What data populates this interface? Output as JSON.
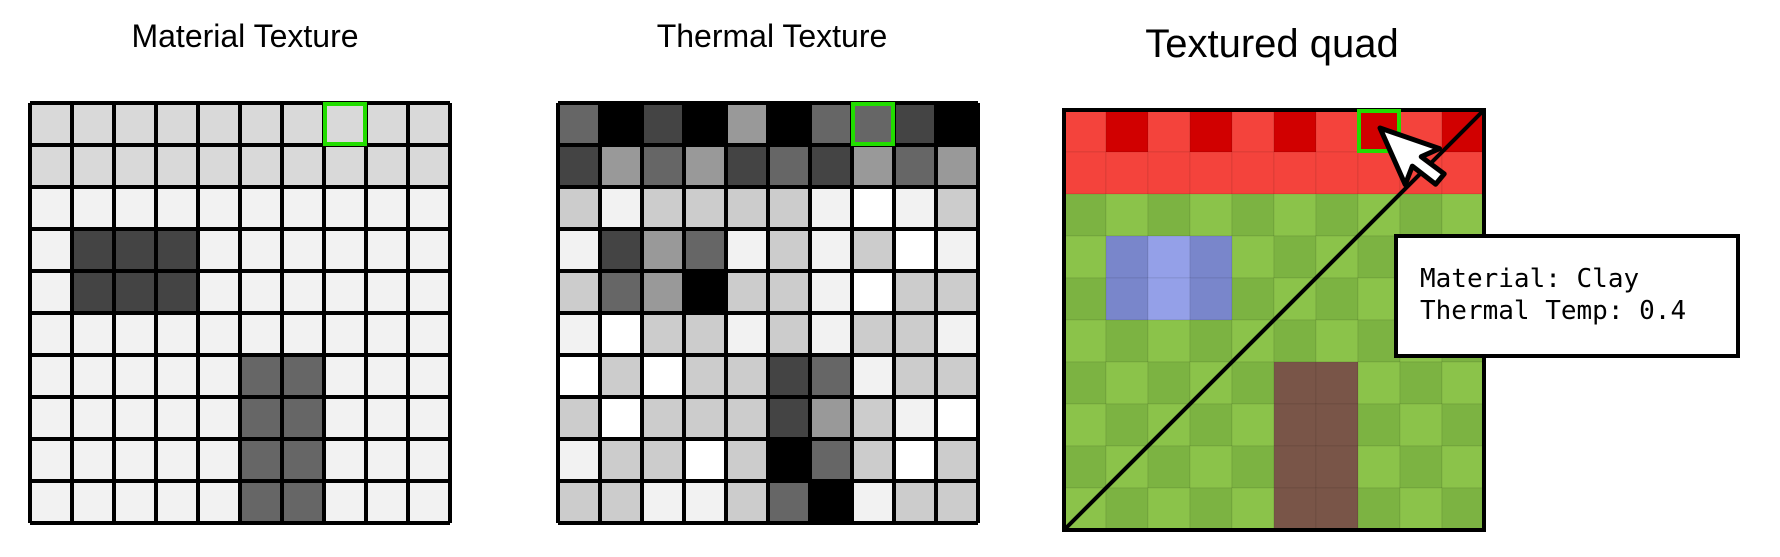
{
  "panels": {
    "material": {
      "title": "Material Texture"
    },
    "thermal": {
      "title": "Thermal Texture"
    },
    "quad": {
      "title": "Textured quad"
    }
  },
  "grid_size": 10,
  "material_grid": [
    [
      "#d9d9d9",
      "#d9d9d9",
      "#d9d9d9",
      "#d9d9d9",
      "#d9d9d9",
      "#d9d9d9",
      "#d9d9d9",
      "#d9d9d9",
      "#d9d9d9",
      "#d9d9d9"
    ],
    [
      "#d9d9d9",
      "#d9d9d9",
      "#d9d9d9",
      "#d9d9d9",
      "#d9d9d9",
      "#d9d9d9",
      "#d9d9d9",
      "#d9d9d9",
      "#d9d9d9",
      "#d9d9d9"
    ],
    [
      "#f2f2f2",
      "#f2f2f2",
      "#f2f2f2",
      "#f2f2f2",
      "#f2f2f2",
      "#f2f2f2",
      "#f2f2f2",
      "#f2f2f2",
      "#f2f2f2",
      "#f2f2f2"
    ],
    [
      "#f2f2f2",
      "#444444",
      "#444444",
      "#444444",
      "#f2f2f2",
      "#f2f2f2",
      "#f2f2f2",
      "#f2f2f2",
      "#f2f2f2",
      "#f2f2f2"
    ],
    [
      "#f2f2f2",
      "#444444",
      "#444444",
      "#444444",
      "#f2f2f2",
      "#f2f2f2",
      "#f2f2f2",
      "#f2f2f2",
      "#f2f2f2",
      "#f2f2f2"
    ],
    [
      "#f2f2f2",
      "#f2f2f2",
      "#f2f2f2",
      "#f2f2f2",
      "#f2f2f2",
      "#f2f2f2",
      "#f2f2f2",
      "#f2f2f2",
      "#f2f2f2",
      "#f2f2f2"
    ],
    [
      "#f2f2f2",
      "#f2f2f2",
      "#f2f2f2",
      "#f2f2f2",
      "#f2f2f2",
      "#666666",
      "#666666",
      "#f2f2f2",
      "#f2f2f2",
      "#f2f2f2"
    ],
    [
      "#f2f2f2",
      "#f2f2f2",
      "#f2f2f2",
      "#f2f2f2",
      "#f2f2f2",
      "#666666",
      "#666666",
      "#f2f2f2",
      "#f2f2f2",
      "#f2f2f2"
    ],
    [
      "#f2f2f2",
      "#f2f2f2",
      "#f2f2f2",
      "#f2f2f2",
      "#f2f2f2",
      "#666666",
      "#666666",
      "#f2f2f2",
      "#f2f2f2",
      "#f2f2f2"
    ],
    [
      "#f2f2f2",
      "#f2f2f2",
      "#f2f2f2",
      "#f2f2f2",
      "#f2f2f2",
      "#666666",
      "#666666",
      "#f2f2f2",
      "#f2f2f2",
      "#f2f2f2"
    ]
  ],
  "thermal_grid": [
    [
      "#666666",
      "#000000",
      "#444444",
      "#000000",
      "#999999",
      "#000000",
      "#666666",
      "#666666",
      "#444444",
      "#000000"
    ],
    [
      "#444444",
      "#999999",
      "#666666",
      "#999999",
      "#444444",
      "#666666",
      "#444444",
      "#999999",
      "#666666",
      "#999999"
    ],
    [
      "#cccccc",
      "#f2f2f2",
      "#cccccc",
      "#cccccc",
      "#cccccc",
      "#cccccc",
      "#f2f2f2",
      "#ffffff",
      "#f2f2f2",
      "#cccccc"
    ],
    [
      "#f2f2f2",
      "#444444",
      "#999999",
      "#666666",
      "#f2f2f2",
      "#cccccc",
      "#f2f2f2",
      "#cccccc",
      "#ffffff",
      "#f2f2f2"
    ],
    [
      "#cccccc",
      "#666666",
      "#999999",
      "#000000",
      "#cccccc",
      "#cccccc",
      "#f2f2f2",
      "#ffffff",
      "#cccccc",
      "#cccccc"
    ],
    [
      "#f2f2f2",
      "#ffffff",
      "#cccccc",
      "#cccccc",
      "#f2f2f2",
      "#cccccc",
      "#f2f2f2",
      "#cccccc",
      "#cccccc",
      "#f2f2f2"
    ],
    [
      "#ffffff",
      "#cccccc",
      "#ffffff",
      "#cccccc",
      "#cccccc",
      "#444444",
      "#666666",
      "#f2f2f2",
      "#cccccc",
      "#cccccc"
    ],
    [
      "#cccccc",
      "#ffffff",
      "#cccccc",
      "#cccccc",
      "#cccccc",
      "#444444",
      "#999999",
      "#cccccc",
      "#f2f2f2",
      "#ffffff"
    ],
    [
      "#f2f2f2",
      "#cccccc",
      "#cccccc",
      "#ffffff",
      "#cccccc",
      "#000000",
      "#666666",
      "#cccccc",
      "#ffffff",
      "#cccccc"
    ],
    [
      "#cccccc",
      "#cccccc",
      "#f2f2f2",
      "#f2f2f2",
      "#cccccc",
      "#666666",
      "#000000",
      "#f2f2f2",
      "#cccccc",
      "#cccccc"
    ]
  ],
  "quad_grid": [
    [
      "#f4433c",
      "#d10000",
      "#f4433c",
      "#d10000",
      "#f4433c",
      "#d10000",
      "#f4433c",
      "#d10000",
      "#f4433c",
      "#d10000"
    ],
    [
      "#f4433c",
      "#f4433c",
      "#f4433c",
      "#f4433c",
      "#f4433c",
      "#f4433c",
      "#f4433c",
      "#f4433c",
      "#f4433c",
      "#f4433c"
    ],
    [
      "#7cb342",
      "#8bc34a",
      "#7cb342",
      "#8bc34a",
      "#7cb342",
      "#8bc34a",
      "#7cb342",
      "#8bc34a",
      "#7cb342",
      "#8bc34a"
    ],
    [
      "#8bc34a",
      "#7986cb",
      "#94a0e8",
      "#7986cb",
      "#8bc34a",
      "#7cb342",
      "#8bc34a",
      "#7cb342",
      "#8bc34a",
      "#7cb342"
    ],
    [
      "#7cb342",
      "#7986cb",
      "#94a0e8",
      "#7986cb",
      "#7cb342",
      "#8bc34a",
      "#7cb342",
      "#8bc34a",
      "#7cb342",
      "#8bc34a"
    ],
    [
      "#8bc34a",
      "#7cb342",
      "#8bc34a",
      "#7cb342",
      "#8bc34a",
      "#7cb342",
      "#8bc34a",
      "#7cb342",
      "#8bc34a",
      "#7cb342"
    ],
    [
      "#7cb342",
      "#8bc34a",
      "#7cb342",
      "#8bc34a",
      "#7cb342",
      "#795548",
      "#795548",
      "#8bc34a",
      "#7cb342",
      "#8bc34a"
    ],
    [
      "#8bc34a",
      "#7cb342",
      "#8bc34a",
      "#7cb342",
      "#8bc34a",
      "#795548",
      "#795548",
      "#7cb342",
      "#8bc34a",
      "#7cb342"
    ],
    [
      "#7cb342",
      "#8bc34a",
      "#7cb342",
      "#8bc34a",
      "#7cb342",
      "#795548",
      "#795548",
      "#8bc34a",
      "#7cb342",
      "#8bc34a"
    ],
    [
      "#8bc34a",
      "#7cb342",
      "#8bc34a",
      "#7cb342",
      "#8bc34a",
      "#795548",
      "#795548",
      "#7cb342",
      "#8bc34a",
      "#7cb342"
    ]
  ],
  "highlight_cell": {
    "row": 0,
    "col": 7,
    "color": "#22dd00"
  },
  "tooltip": {
    "material_line": "Material: Clay",
    "thermal_line": "Thermal Temp: 0.4"
  },
  "colors": {
    "grid_line": "#000000",
    "cursor_fill": "#ffffff",
    "cursor_stroke": "#000000"
  }
}
